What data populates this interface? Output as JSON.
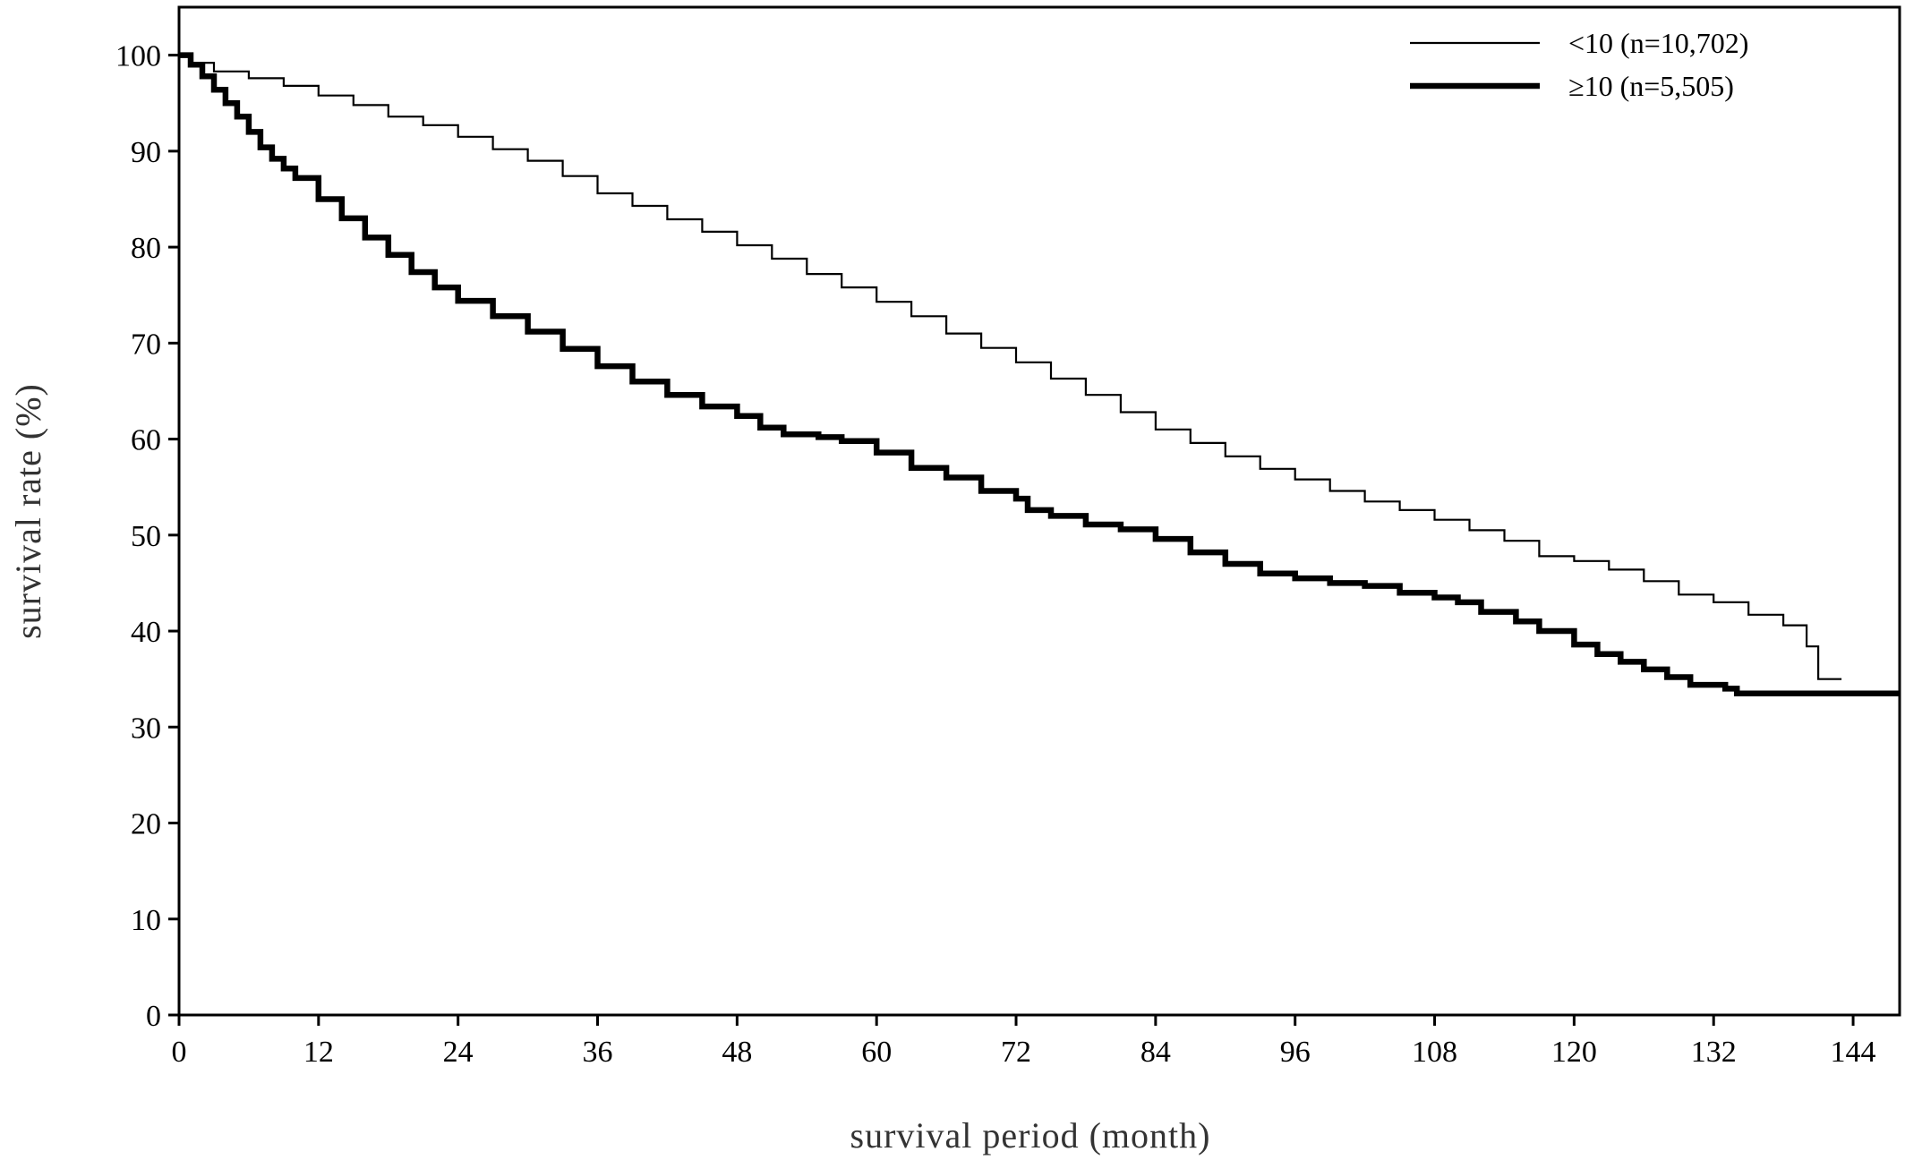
{
  "chart_data": {
    "type": "line",
    "subtype": "kaplan-meier step curve",
    "xlabel": "survival period (month)",
    "ylabel": "survival rate (%)",
    "xlim": [
      0,
      148
    ],
    "ylim": [
      0,
      105
    ],
    "xticks": [
      0,
      12,
      24,
      36,
      48,
      60,
      72,
      84,
      96,
      108,
      120,
      132,
      144
    ],
    "yticks": [
      0,
      10,
      20,
      30,
      40,
      50,
      60,
      70,
      80,
      90,
      100
    ],
    "grid": false,
    "legend_position": "top-right",
    "series": [
      {
        "name": "<10 (n=10,702)",
        "line_style": "thin",
        "color": "#000000",
        "points": [
          [
            0,
            100
          ],
          [
            1,
            99.2
          ],
          [
            3,
            98.3
          ],
          [
            6,
            97.6
          ],
          [
            9,
            96.8
          ],
          [
            12,
            95.8
          ],
          [
            15,
            94.8
          ],
          [
            18,
            93.6
          ],
          [
            21,
            92.7
          ],
          [
            24,
            91.5
          ],
          [
            27,
            90.2
          ],
          [
            30,
            89.0
          ],
          [
            33,
            87.4
          ],
          [
            36,
            85.6
          ],
          [
            39,
            84.3
          ],
          [
            42,
            82.9
          ],
          [
            45,
            81.6
          ],
          [
            48,
            80.2
          ],
          [
            51,
            78.8
          ],
          [
            54,
            77.2
          ],
          [
            57,
            75.8
          ],
          [
            60,
            74.3
          ],
          [
            63,
            72.8
          ],
          [
            66,
            71.0
          ],
          [
            69,
            69.5
          ],
          [
            72,
            68.0
          ],
          [
            75,
            66.3
          ],
          [
            78,
            64.6
          ],
          [
            81,
            62.8
          ],
          [
            84,
            61.0
          ],
          [
            87,
            59.6
          ],
          [
            90,
            58.2
          ],
          [
            93,
            56.9
          ],
          [
            96,
            55.8
          ],
          [
            99,
            54.6
          ],
          [
            102,
            53.5
          ],
          [
            105,
            52.6
          ],
          [
            108,
            51.6
          ],
          [
            111,
            50.5
          ],
          [
            114,
            49.4
          ],
          [
            117,
            47.8
          ],
          [
            120,
            47.3
          ],
          [
            123,
            46.4
          ],
          [
            126,
            45.2
          ],
          [
            129,
            43.8
          ],
          [
            132,
            43.0
          ],
          [
            135,
            41.7
          ],
          [
            138,
            40.6
          ],
          [
            140,
            38.4
          ],
          [
            141,
            35.0
          ],
          [
            143,
            35.0
          ]
        ]
      },
      {
        "name": "≥10 (n=5,505)",
        "line_style": "thick",
        "color": "#000000",
        "points": [
          [
            0,
            100
          ],
          [
            1,
            99.0
          ],
          [
            2,
            97.8
          ],
          [
            3,
            96.4
          ],
          [
            4,
            95.0
          ],
          [
            5,
            93.6
          ],
          [
            6,
            92.0
          ],
          [
            7,
            90.4
          ],
          [
            8,
            89.2
          ],
          [
            9,
            88.2
          ],
          [
            10,
            87.2
          ],
          [
            12,
            85.0
          ],
          [
            14,
            83.0
          ],
          [
            16,
            81.0
          ],
          [
            18,
            79.2
          ],
          [
            20,
            77.4
          ],
          [
            22,
            75.8
          ],
          [
            24,
            74.4
          ],
          [
            27,
            72.8
          ],
          [
            30,
            71.2
          ],
          [
            33,
            69.4
          ],
          [
            36,
            67.6
          ],
          [
            39,
            66.0
          ],
          [
            42,
            64.6
          ],
          [
            45,
            63.4
          ],
          [
            48,
            62.4
          ],
          [
            50,
            61.2
          ],
          [
            52,
            60.5
          ],
          [
            55,
            60.2
          ],
          [
            57,
            59.8
          ],
          [
            60,
            58.6
          ],
          [
            63,
            57.0
          ],
          [
            66,
            56.0
          ],
          [
            69,
            54.6
          ],
          [
            72,
            53.8
          ],
          [
            73,
            52.6
          ],
          [
            75,
            52.0
          ],
          [
            78,
            51.1
          ],
          [
            81,
            50.6
          ],
          [
            84,
            49.6
          ],
          [
            87,
            48.2
          ],
          [
            90,
            47.0
          ],
          [
            93,
            46.0
          ],
          [
            96,
            45.5
          ],
          [
            99,
            45.0
          ],
          [
            102,
            44.7
          ],
          [
            105,
            44.0
          ],
          [
            108,
            43.5
          ],
          [
            110,
            43.0
          ],
          [
            112,
            42.0
          ],
          [
            115,
            41.0
          ],
          [
            117,
            40.0
          ],
          [
            120,
            38.6
          ],
          [
            122,
            37.6
          ],
          [
            124,
            36.8
          ],
          [
            126,
            36.0
          ],
          [
            128,
            35.2
          ],
          [
            130,
            34.4
          ],
          [
            133,
            34.0
          ],
          [
            134,
            33.5
          ],
          [
            144,
            33.5
          ],
          [
            148,
            33.5
          ]
        ]
      }
    ]
  }
}
